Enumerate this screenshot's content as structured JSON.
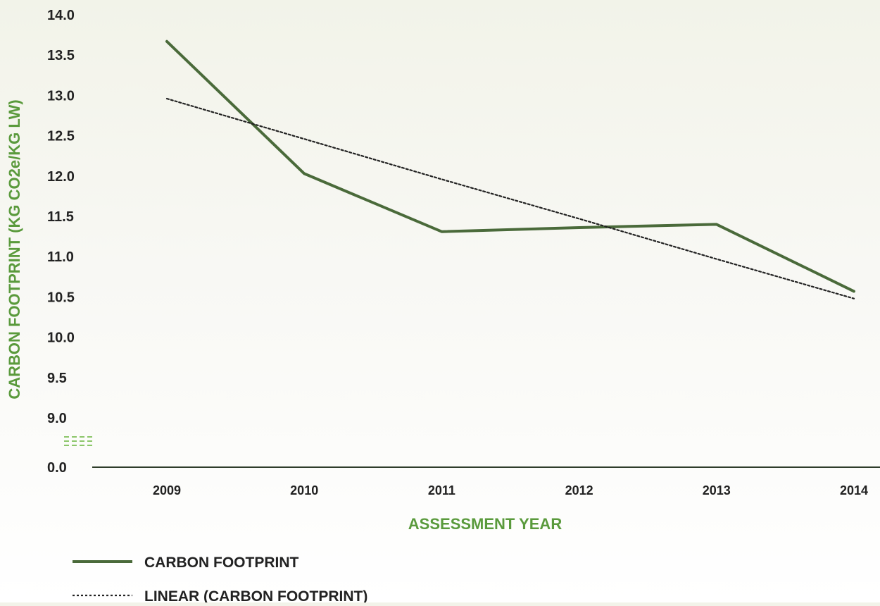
{
  "chart_data": {
    "type": "line",
    "xlabel": "ASSESSMENT YEAR",
    "ylabel": "CARBON FOOTPRINT (KG CO2e/KG LW)",
    "categories": [
      "2009",
      "2010",
      "2011",
      "2012",
      "2013",
      "2014"
    ],
    "y_ticks": [
      "0.0",
      "9.0",
      "9.5",
      "10.0",
      "10.5",
      "11.0",
      "11.5",
      "12.0",
      "12.5",
      "13.0",
      "13.5",
      "14.0"
    ],
    "ylim": [
      9.0,
      14.0
    ],
    "axis_break": "between 0.0 and 9.0",
    "grid": false,
    "legend_position": "bottom-left",
    "series": [
      {
        "name": "CARBON FOOTPRINT",
        "values": [
          13.67,
          12.03,
          11.31,
          11.36,
          11.4,
          10.57
        ],
        "color": "#4a6a3a",
        "style": "solid"
      },
      {
        "name": "LINEAR (CARBON FOOTPRINT)",
        "values": [
          12.96,
          12.46,
          11.96,
          11.47,
          10.97,
          10.48
        ],
        "color": "#222222",
        "style": "dotted"
      }
    ],
    "colors": {
      "axis_title": "#5a9a3c",
      "break_marks": "#8cc66a",
      "axis_line": "#2f3d2a"
    }
  }
}
